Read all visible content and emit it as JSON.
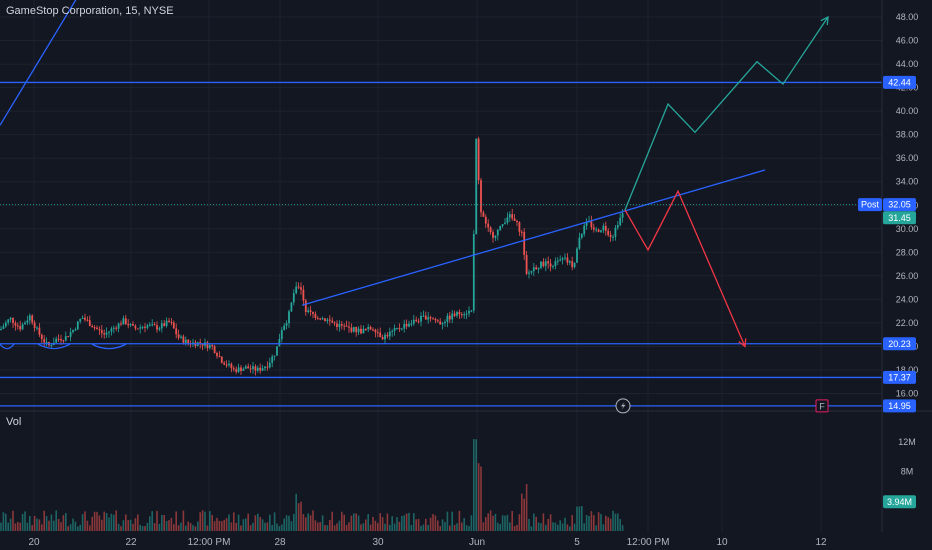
{
  "header": {
    "title": "GameStop Corporation, 15, NYSE"
  },
  "volume_pane": {
    "label": "Vol"
  },
  "colors": {
    "bg": "#131722",
    "grid": "#1e222d",
    "up": "#26a69a",
    "down": "#ef5350",
    "line": "#2962ff",
    "green_arrow": "#26a69a",
    "red_arrow": "#f23645",
    "text": "#b2b5be"
  },
  "chart_data": {
    "type": "candlestick",
    "title": "GameStop Corporation, 15, NYSE",
    "price_axis": {
      "ticks": [
        "16.00",
        "18.00",
        "20.00",
        "22.00",
        "24.00",
        "26.00",
        "28.00",
        "30.00",
        "32.00",
        "34.00",
        "36.00",
        "38.00",
        "40.00",
        "42.00",
        "44.00",
        "46.00",
        "48.00"
      ],
      "ylim": [
        14.5,
        49
      ]
    },
    "time_axis": {
      "ticks": [
        "20",
        "22",
        "12:00 PM",
        "28",
        "30",
        "Jun",
        "5",
        "12:00 PM",
        "10",
        "12"
      ]
    },
    "horizontal_levels": [
      {
        "label": "42.44",
        "value": 42.44
      },
      {
        "label": "20.23",
        "value": 20.23
      },
      {
        "label": "17.37",
        "value": 17.37
      },
      {
        "label": "14.95",
        "value": 14.95
      }
    ],
    "price_tags": {
      "post_label": "Post",
      "post_value": "32.05",
      "last_value": "31.45"
    },
    "volume_axis": {
      "ticks": [
        "4M",
        "8M",
        "12M"
      ],
      "last_value": "3.94M"
    },
    "trendlines": [
      {
        "name": "upper-left-line",
        "from": [
          0,
          38.8
        ],
        "to": [
          165,
          62.0
        ]
      },
      {
        "name": "ascending-support",
        "from": [
          302,
          23.5
        ],
        "to": [
          765,
          35.0
        ]
      }
    ],
    "projections": {
      "green": [
        [
          625,
          31.6
        ],
        [
          668,
          40.6
        ],
        [
          695,
          38.2
        ],
        [
          757,
          44.2
        ],
        [
          783,
          42.3
        ],
        [
          828,
          48.0
        ]
      ],
      "red": [
        [
          625,
          31.6
        ],
        [
          648,
          28.2
        ],
        [
          678,
          33.2
        ],
        [
          745,
          20.0
        ]
      ]
    },
    "price_path": [
      [
        0,
        21.4
      ],
      [
        10,
        22.4
      ],
      [
        20,
        21.6
      ],
      [
        30,
        22.6
      ],
      [
        38,
        21.2
      ],
      [
        48,
        20.0
      ],
      [
        56,
        20.6
      ],
      [
        66,
        20.8
      ],
      [
        74,
        21.5
      ],
      [
        82,
        22.5
      ],
      [
        92,
        21.8
      ],
      [
        104,
        21.0
      ],
      [
        114,
        21.6
      ],
      [
        124,
        22.2
      ],
      [
        134,
        21.5
      ],
      [
        146,
        21.8
      ],
      [
        158,
        21.6
      ],
      [
        170,
        22.1
      ],
      [
        178,
        20.8
      ],
      [
        188,
        20.3
      ],
      [
        200,
        20.3
      ],
      [
        212,
        20.0
      ],
      [
        222,
        18.8
      ],
      [
        234,
        18.0
      ],
      [
        246,
        18.2
      ],
      [
        258,
        18.0
      ],
      [
        268,
        18.5
      ],
      [
        276,
        19.6
      ],
      [
        282,
        21.6
      ],
      [
        288,
        22.4
      ],
      [
        294,
        24.6
      ],
      [
        300,
        25.3
      ],
      [
        306,
        23.0
      ],
      [
        316,
        22.6
      ],
      [
        326,
        22.3
      ],
      [
        338,
        21.8
      ],
      [
        350,
        21.5
      ],
      [
        362,
        21.3
      ],
      [
        374,
        21.6
      ],
      [
        382,
        20.8
      ],
      [
        392,
        21.2
      ],
      [
        404,
        21.8
      ],
      [
        416,
        22.2
      ],
      [
        428,
        22.6
      ],
      [
        440,
        22.0
      ],
      [
        452,
        22.6
      ],
      [
        462,
        22.9
      ],
      [
        472,
        23.0
      ],
      [
        476,
        38.0
      ],
      [
        480,
        31.8
      ],
      [
        486,
        30.2
      ],
      [
        492,
        29.4
      ],
      [
        500,
        30.0
      ],
      [
        508,
        31.2
      ],
      [
        516,
        30.5
      ],
      [
        522,
        29.6
      ],
      [
        526,
        26.0
      ],
      [
        534,
        26.7
      ],
      [
        544,
        27.1
      ],
      [
        554,
        27.0
      ],
      [
        564,
        27.4
      ],
      [
        574,
        26.8
      ],
      [
        580,
        29.5
      ],
      [
        588,
        30.6
      ],
      [
        596,
        29.8
      ],
      [
        604,
        30.2
      ],
      [
        612,
        29.3
      ],
      [
        618,
        30.6
      ],
      [
        624,
        31.45
      ]
    ],
    "markers": [
      {
        "type": "lightning",
        "x": 623
      },
      {
        "type": "flag",
        "label": "F",
        "x": 822
      }
    ]
  }
}
